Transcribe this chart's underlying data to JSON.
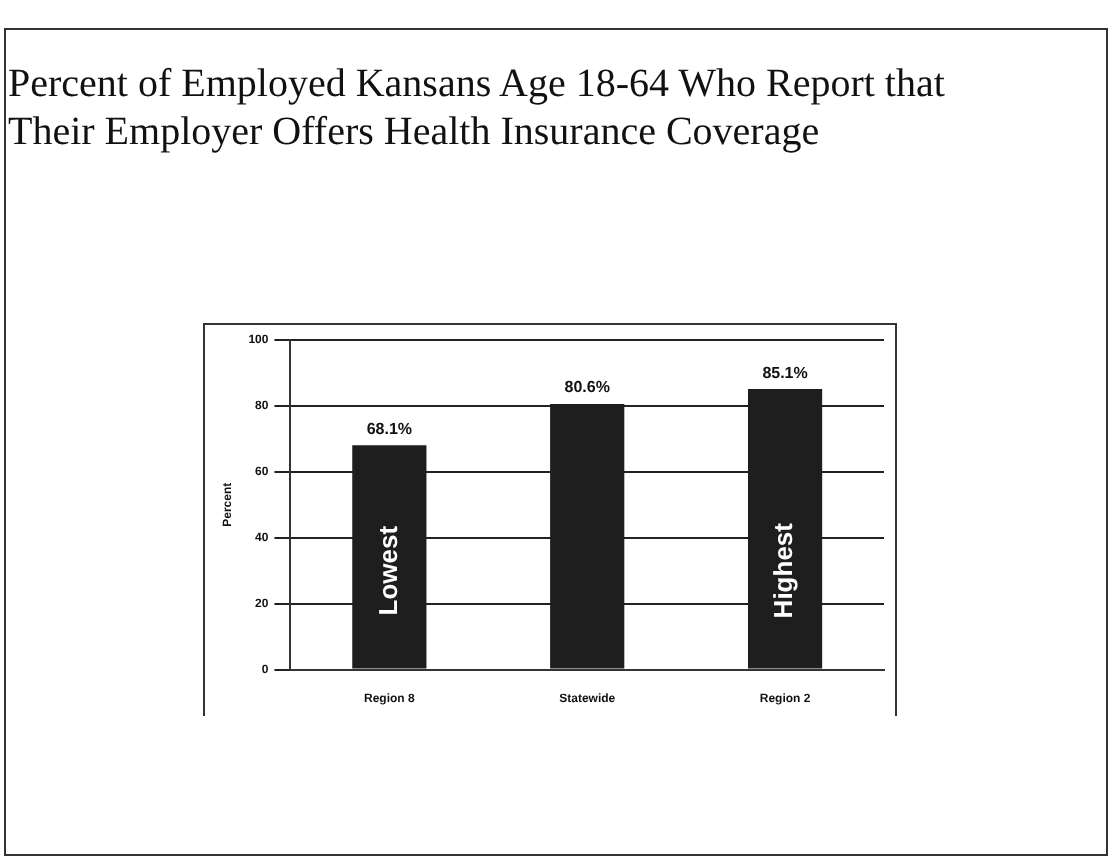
{
  "chart_data": {
    "type": "bar",
    "title": "Percent of Employed Kansans Age 18-64 Who Report that\nTheir Employer Offers Health Insurance Coverage",
    "ylabel": "Percent",
    "categories": [
      "Region 8",
      "Statewide",
      "Region 2"
    ],
    "values": [
      68.1,
      80.6,
      85.1
    ],
    "color": "#1e1e1e",
    "value_labels": [
      "68.1%",
      "80.6%",
      "85.1%"
    ],
    "annotations": [
      "Lowest",
      "Highest"
    ],
    "ylim": [
      0,
      100
    ],
    "yticks": [
      0,
      20,
      40,
      60,
      80,
      100
    ],
    "grid": "y",
    "legend": false
  }
}
